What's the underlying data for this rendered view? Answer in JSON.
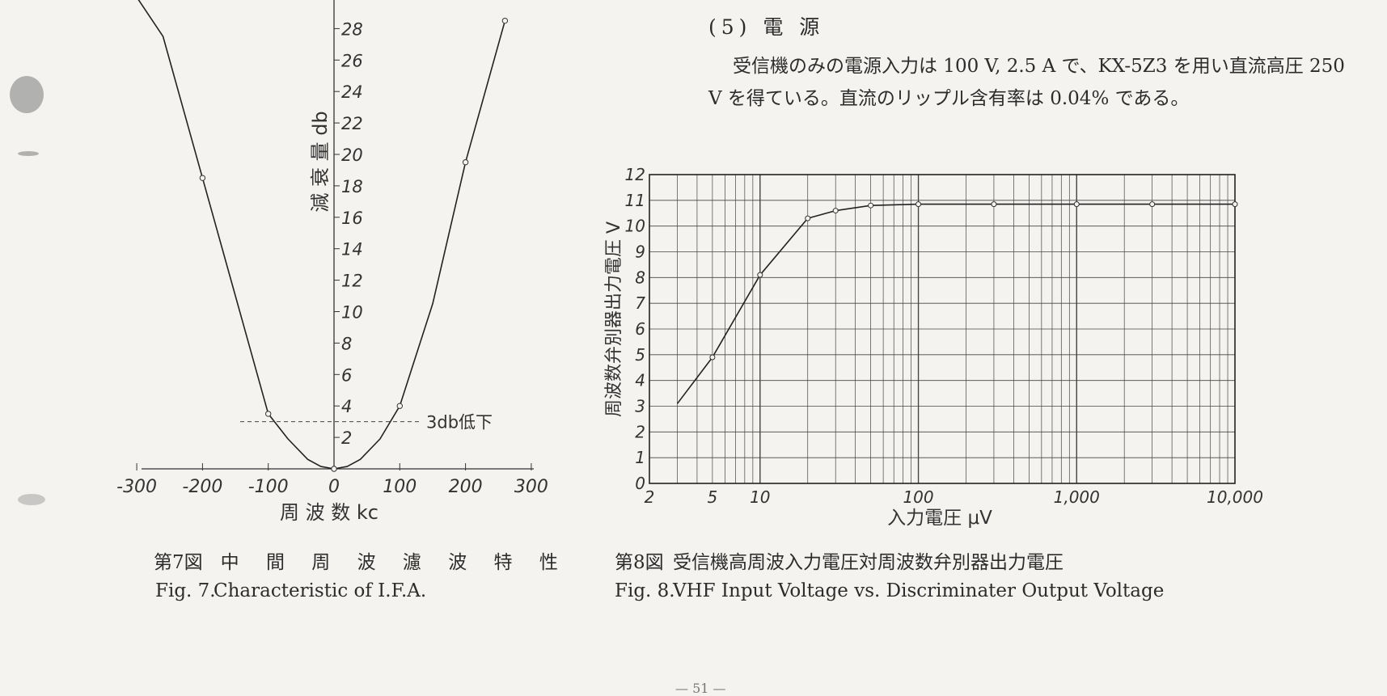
{
  "chart_data": [
    {
      "type": "line",
      "ylabel": "減 衰 量 db",
      "xlabel": "周 波 数 kc",
      "x_ticks": [
        "-300",
        "-200",
        "-100",
        "0",
        "100",
        "200",
        "300"
      ],
      "y_ticks": [
        "2",
        "4",
        "6",
        "8",
        "10",
        "12",
        "14",
        "16",
        "18",
        "20",
        "22",
        "24",
        "26",
        "28"
      ],
      "ylim": [
        0,
        30
      ],
      "xlim": [
        -300,
        300
      ],
      "series": [
        {
          "x": [
            -300,
            -260,
            -200,
            -150,
            -100,
            -70,
            -40,
            -20,
            0,
            20,
            40,
            70,
            100,
            150,
            200,
            260
          ],
          "y": [
            30,
            27.5,
            18.5,
            11,
            3.5,
            1.9,
            0.6,
            0.15,
            0,
            0.15,
            0.6,
            1.9,
            4,
            10.5,
            19.5,
            28.5
          ]
        }
      ],
      "marked_points": [
        {
          "x": -200,
          "y": 18.5
        },
        {
          "x": -100,
          "y": 3.5
        },
        {
          "x": 0,
          "y": 0
        },
        {
          "x": 100,
          "y": 4
        },
        {
          "x": 200,
          "y": 19.5
        },
        {
          "x": 260,
          "y": 28.5
        }
      ],
      "reference_line": {
        "y": 3,
        "label": "3db低下"
      },
      "grid": false
    },
    {
      "type": "line",
      "ylabel": "周波数弁別器出力電圧 V",
      "xlabel": "入力電圧 μV",
      "xscale": "log",
      "xlim": [
        2,
        10000
      ],
      "ylim": [
        0,
        12
      ],
      "x_ticks": [
        "2",
        "5",
        "10",
        "100",
        "1,000",
        "10,000"
      ],
      "y_ticks": [
        "0",
        "1",
        "2",
        "3",
        "4",
        "5",
        "6",
        "7",
        "8",
        "9",
        "10",
        "11",
        "12"
      ],
      "grid": true,
      "series": [
        {
          "x": [
            3,
            5,
            10,
            20,
            30,
            50,
            100,
            300,
            1000,
            3000,
            10000
          ],
          "y": [
            3.1,
            4.9,
            8.1,
            10.3,
            10.6,
            10.8,
            10.85,
            10.85,
            10.85,
            10.85,
            10.85
          ]
        }
      ]
    }
  ],
  "section": {
    "title": "(5) 電 源",
    "paragraph": "受信機のみの電源入力は 100 V, 2.5 A で、KX-5Z3 を用い直流高圧 250 V を得ている。直流のリップル含有率は 0.04% である。"
  },
  "captions": {
    "fig7_num_jp": "第7図",
    "fig7_title_jp": "中 間 周 波 濾 波 特 性",
    "fig7_num_en": "Fig. 7.",
    "fig7_title_en": "Characteristic of I.F.A.",
    "fig8_num_jp": "第8図",
    "fig8_title_jp": "受信機高周波入力電圧対周波数弁別器出力電圧",
    "fig8_num_en": "Fig. 8.",
    "fig8_title_en": "VHF Input Voltage vs. Discriminater Output Voltage"
  },
  "page_number": "— 51 —"
}
